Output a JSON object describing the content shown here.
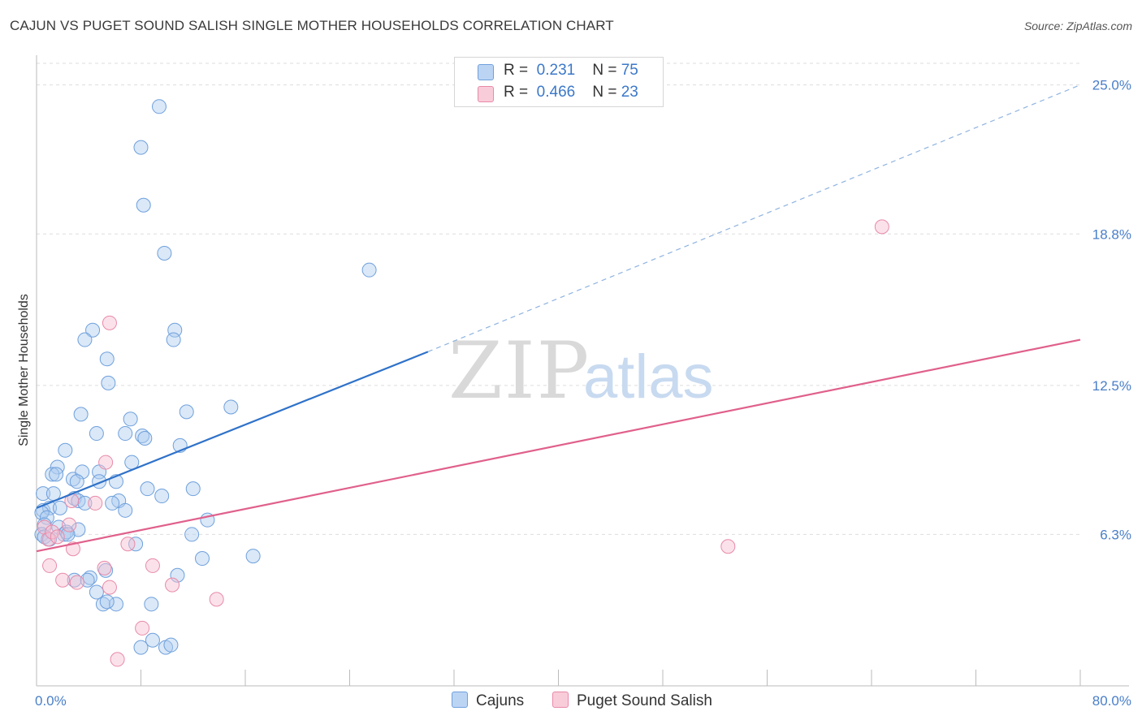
{
  "header": {
    "title": "CAJUN VS PUGET SOUND SALISH SINGLE MOTHER HOUSEHOLDS CORRELATION CHART",
    "source": "Source: ZipAtlas.com"
  },
  "legend": {
    "rows": [
      {
        "r_label": "R =",
        "r_value": "0.231",
        "n_label": "N =",
        "n_value": "75",
        "color": "#aecbf0"
      },
      {
        "r_label": "R =",
        "r_value": "0.466",
        "n_label": "N =",
        "n_value": "23",
        "color": "#f7bfd0"
      }
    ]
  },
  "bottom_legend": {
    "cajuns": "Cajuns",
    "puget": "Puget Sound Salish"
  },
  "watermark": {
    "zip": "ZIP",
    "atlas": "atlas"
  },
  "chart_data": {
    "type": "scatter",
    "title": "CAJUN VS PUGET SOUND SALISH SINGLE MOTHER HOUSEHOLDS CORRELATION CHART",
    "ylabel": "Single Mother Households",
    "xlabel": "",
    "xlim": [
      0,
      80
    ],
    "ylim": [
      0,
      25.9
    ],
    "x_tick_labels": [
      "0.0%",
      "80.0%"
    ],
    "y_ticks": [
      6.3,
      12.5,
      18.8,
      25.0
    ],
    "y_tick_labels": [
      "6.3%",
      "12.5%",
      "18.8%",
      "25.0%"
    ],
    "grid": true,
    "series": [
      {
        "name": "Cajuns",
        "color": "#aecbf0",
        "stroke": "#6fa0dc",
        "trend_color": "#2f72c9",
        "trend": {
          "x0": 0,
          "y0": 7.4,
          "x1": 30,
          "y1": 13.9,
          "dashed_to_x": 80,
          "dashed_to_y": 25.0
        },
        "points": [
          [
            9.4,
            24.1
          ],
          [
            8.0,
            22.4
          ],
          [
            8.2,
            20.0
          ],
          [
            9.8,
            18.0
          ],
          [
            25.5,
            17.3
          ],
          [
            10.6,
            14.8
          ],
          [
            10.5,
            14.4
          ],
          [
            4.3,
            14.8
          ],
          [
            3.7,
            14.4
          ],
          [
            5.4,
            13.6
          ],
          [
            5.5,
            12.6
          ],
          [
            3.4,
            11.3
          ],
          [
            11.5,
            11.4
          ],
          [
            14.9,
            11.6
          ],
          [
            7.2,
            11.1
          ],
          [
            6.8,
            10.5
          ],
          [
            8.1,
            10.4
          ],
          [
            8.3,
            10.3
          ],
          [
            4.6,
            10.5
          ],
          [
            11.0,
            10.0
          ],
          [
            2.2,
            9.8
          ],
          [
            7.3,
            9.3
          ],
          [
            1.6,
            9.1
          ],
          [
            1.2,
            8.8
          ],
          [
            1.5,
            8.8
          ],
          [
            2.8,
            8.6
          ],
          [
            3.5,
            8.9
          ],
          [
            4.8,
            8.9
          ],
          [
            3.1,
            8.5
          ],
          [
            4.8,
            8.5
          ],
          [
            6.1,
            8.5
          ],
          [
            8.5,
            8.2
          ],
          [
            12.0,
            8.2
          ],
          [
            0.5,
            8.0
          ],
          [
            1.3,
            8.0
          ],
          [
            9.6,
            7.9
          ],
          [
            2.9,
            7.8
          ],
          [
            3.2,
            7.7
          ],
          [
            6.3,
            7.7
          ],
          [
            3.7,
            7.6
          ],
          [
            5.8,
            7.6
          ],
          [
            0.5,
            7.3
          ],
          [
            1.0,
            7.4
          ],
          [
            0.4,
            7.2
          ],
          [
            1.8,
            7.4
          ],
          [
            6.8,
            7.3
          ],
          [
            0.8,
            7.0
          ],
          [
            13.1,
            6.9
          ],
          [
            0.6,
            6.7
          ],
          [
            1.7,
            6.6
          ],
          [
            3.2,
            6.5
          ],
          [
            2.1,
            6.3
          ],
          [
            2.3,
            6.4
          ],
          [
            2.4,
            6.3
          ],
          [
            0.4,
            6.3
          ],
          [
            0.6,
            6.2
          ],
          [
            1.0,
            6.1
          ],
          [
            11.9,
            6.3
          ],
          [
            7.6,
            5.9
          ],
          [
            16.6,
            5.4
          ],
          [
            12.7,
            5.3
          ],
          [
            5.3,
            4.8
          ],
          [
            10.8,
            4.6
          ],
          [
            4.1,
            4.5
          ],
          [
            2.9,
            4.4
          ],
          [
            3.9,
            4.4
          ],
          [
            4.6,
            3.9
          ],
          [
            5.1,
            3.4
          ],
          [
            6.1,
            3.4
          ],
          [
            8.8,
            3.4
          ],
          [
            5.4,
            3.5
          ],
          [
            8.9,
            1.9
          ],
          [
            8.0,
            1.6
          ],
          [
            9.9,
            1.6
          ],
          [
            10.3,
            1.7
          ]
        ]
      },
      {
        "name": "Puget Sound Salish",
        "color": "#f7bfd0",
        "stroke": "#e88aa8",
        "trend_color": "#e0608c",
        "trend": {
          "x0": 0,
          "y0": 5.6,
          "x1": 80,
          "y1": 14.4
        },
        "points": [
          [
            64.8,
            19.1
          ],
          [
            5.6,
            15.1
          ],
          [
            0.6,
            6.6
          ],
          [
            0.9,
            6.1
          ],
          [
            1.2,
            6.4
          ],
          [
            1.6,
            6.2
          ],
          [
            2.7,
            7.7
          ],
          [
            4.5,
            7.6
          ],
          [
            5.3,
            9.3
          ],
          [
            2.5,
            6.7
          ],
          [
            2.8,
            5.7
          ],
          [
            7.0,
            5.9
          ],
          [
            1.0,
            5.0
          ],
          [
            8.9,
            5.0
          ],
          [
            5.2,
            4.9
          ],
          [
            2.0,
            4.4
          ],
          [
            3.1,
            4.3
          ],
          [
            5.6,
            4.1
          ],
          [
            10.4,
            4.2
          ],
          [
            13.8,
            3.6
          ],
          [
            8.1,
            2.4
          ],
          [
            6.2,
            1.1
          ],
          [
            53.0,
            5.8
          ]
        ]
      }
    ]
  }
}
